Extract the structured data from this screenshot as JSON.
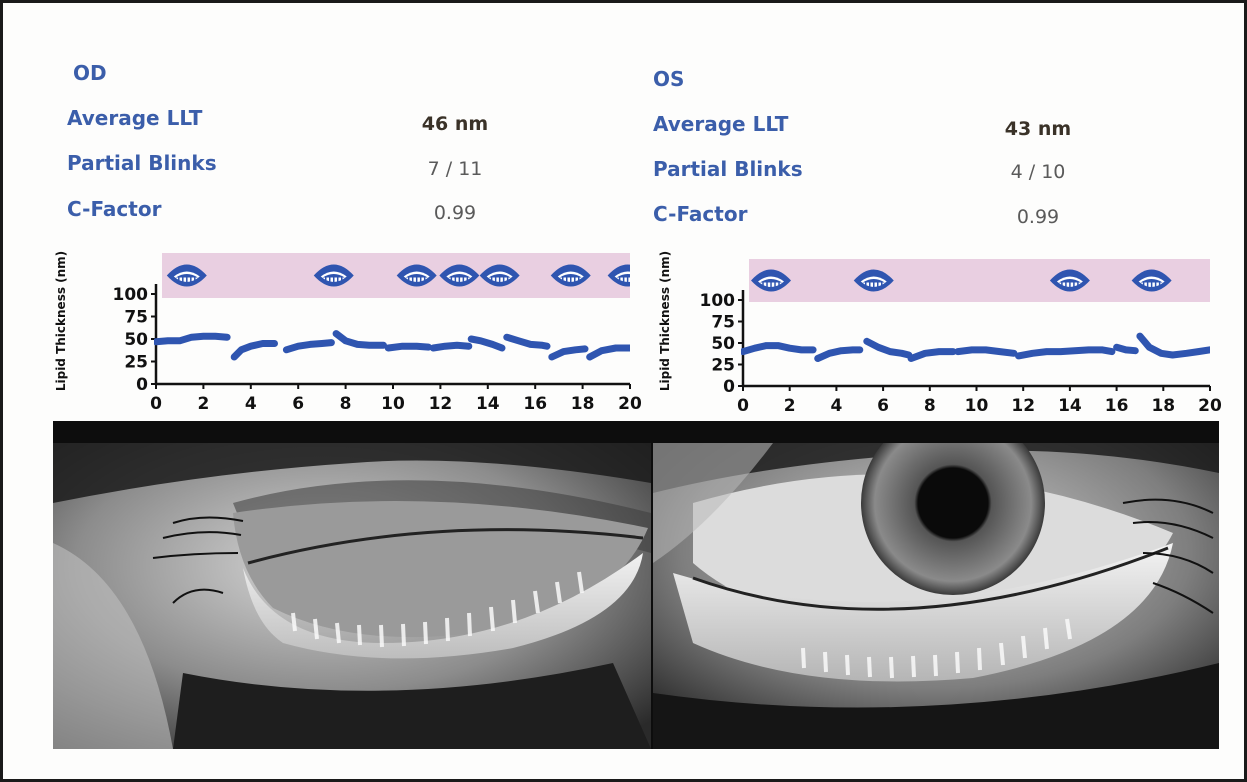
{
  "od": {
    "eye_label": "OD",
    "rows": [
      {
        "label": "Average LLT",
        "value": "46 nm",
        "strong": true
      },
      {
        "label": "Partial Blinks",
        "value": "7 / 11",
        "strong": false
      },
      {
        "label": "C-Factor",
        "value": "0.99",
        "strong": false
      }
    ]
  },
  "os": {
    "eye_label": "OS",
    "rows": [
      {
        "label": "Average LLT",
        "value": "43 nm",
        "strong": true
      },
      {
        "label": "Partial Blinks",
        "value": "4 / 10",
        "strong": false
      },
      {
        "label": "C-Factor",
        "value": "0.99",
        "strong": false
      }
    ]
  },
  "colors": {
    "label": "#3b5eaa",
    "trace": "#2f55b0",
    "blink_band": "#e9cfe1",
    "axis": "#111111"
  },
  "chart_data": [
    {
      "type": "line",
      "eye": "OD",
      "ylabel": "Lipid Thickness (nm)",
      "xlabel": "",
      "xlim": [
        0,
        20
      ],
      "ylim": [
        0,
        100
      ],
      "x_ticks": [
        "0",
        "2",
        "4",
        "6",
        "8",
        "10",
        "12",
        "14",
        "16",
        "18",
        "20"
      ],
      "y_ticks": [
        "0",
        "25",
        "50",
        "75",
        "100"
      ],
      "blink_times": [
        1.3,
        7.5,
        11.0,
        12.8,
        14.5,
        17.5,
        19.9
      ],
      "segments": [
        {
          "x": [
            0.0,
            0.5,
            1.0,
            1.5,
            2.0,
            2.5,
            3.0
          ],
          "y": [
            47,
            48,
            48,
            52,
            53,
            53,
            52
          ]
        },
        {
          "x": [
            3.3,
            3.6,
            4.0,
            4.5,
            5.0
          ],
          "y": [
            30,
            38,
            42,
            45,
            45
          ]
        },
        {
          "x": [
            5.5,
            6.0,
            6.5,
            7.0,
            7.4
          ],
          "y": [
            38,
            42,
            44,
            45,
            46
          ]
        },
        {
          "x": [
            7.6,
            8.0,
            8.5,
            9.0,
            9.6
          ],
          "y": [
            56,
            48,
            44,
            43,
            43
          ]
        },
        {
          "x": [
            9.8,
            10.4,
            11.0,
            11.5
          ],
          "y": [
            40,
            42,
            42,
            41
          ]
        },
        {
          "x": [
            11.7,
            12.2,
            12.7,
            13.2
          ],
          "y": [
            40,
            42,
            43,
            42
          ]
        },
        {
          "x": [
            13.3,
            13.7,
            14.2,
            14.6
          ],
          "y": [
            50,
            48,
            44,
            40
          ]
        },
        {
          "x": [
            14.8,
            15.3,
            15.8,
            16.3,
            16.5
          ],
          "y": [
            52,
            48,
            44,
            43,
            42
          ]
        },
        {
          "x": [
            16.7,
            17.2,
            17.7,
            18.1
          ],
          "y": [
            30,
            36,
            38,
            39
          ]
        },
        {
          "x": [
            18.3,
            18.8,
            19.4,
            20.0
          ],
          "y": [
            30,
            37,
            40,
            40
          ]
        }
      ]
    },
    {
      "type": "line",
      "eye": "OS",
      "ylabel": "Lipid Thickness (nm)",
      "xlabel": "",
      "xlim": [
        0,
        20
      ],
      "ylim": [
        0,
        100
      ],
      "x_ticks": [
        "0",
        "2",
        "4",
        "6",
        "8",
        "10",
        "12",
        "14",
        "16",
        "18",
        "20"
      ],
      "y_ticks": [
        "0",
        "25",
        "50",
        "75",
        "100"
      ],
      "blink_times": [
        1.2,
        5.6,
        14.0,
        17.5
      ],
      "segments": [
        {
          "x": [
            0.0,
            0.5,
            1.0,
            1.5,
            2.0,
            2.5,
            3.0
          ],
          "y": [
            40,
            44,
            47,
            47,
            44,
            42,
            42
          ]
        },
        {
          "x": [
            3.2,
            3.7,
            4.2,
            4.7,
            5.0
          ],
          "y": [
            32,
            38,
            41,
            42,
            42
          ]
        },
        {
          "x": [
            5.3,
            5.8,
            6.3,
            6.8,
            7.1
          ],
          "y": [
            52,
            45,
            40,
            38,
            36
          ]
        },
        {
          "x": [
            7.2,
            7.8,
            8.4,
            9.0
          ],
          "y": [
            32,
            38,
            40,
            40
          ]
        },
        {
          "x": [
            9.2,
            9.8,
            10.4,
            11.0,
            11.6
          ],
          "y": [
            40,
            42,
            42,
            40,
            38
          ]
        },
        {
          "x": [
            11.8,
            12.4,
            13.0,
            13.6,
            14.2,
            14.8,
            15.4,
            15.8
          ],
          "y": [
            35,
            38,
            40,
            40,
            41,
            42,
            42,
            40
          ]
        },
        {
          "x": [
            16.0,
            16.4,
            16.8
          ],
          "y": [
            45,
            42,
            41
          ]
        },
        {
          "x": [
            17.0,
            17.4,
            17.9,
            18.4,
            19.0,
            19.5,
            20.0
          ],
          "y": [
            58,
            45,
            38,
            36,
            38,
            40,
            42
          ]
        }
      ]
    }
  ]
}
